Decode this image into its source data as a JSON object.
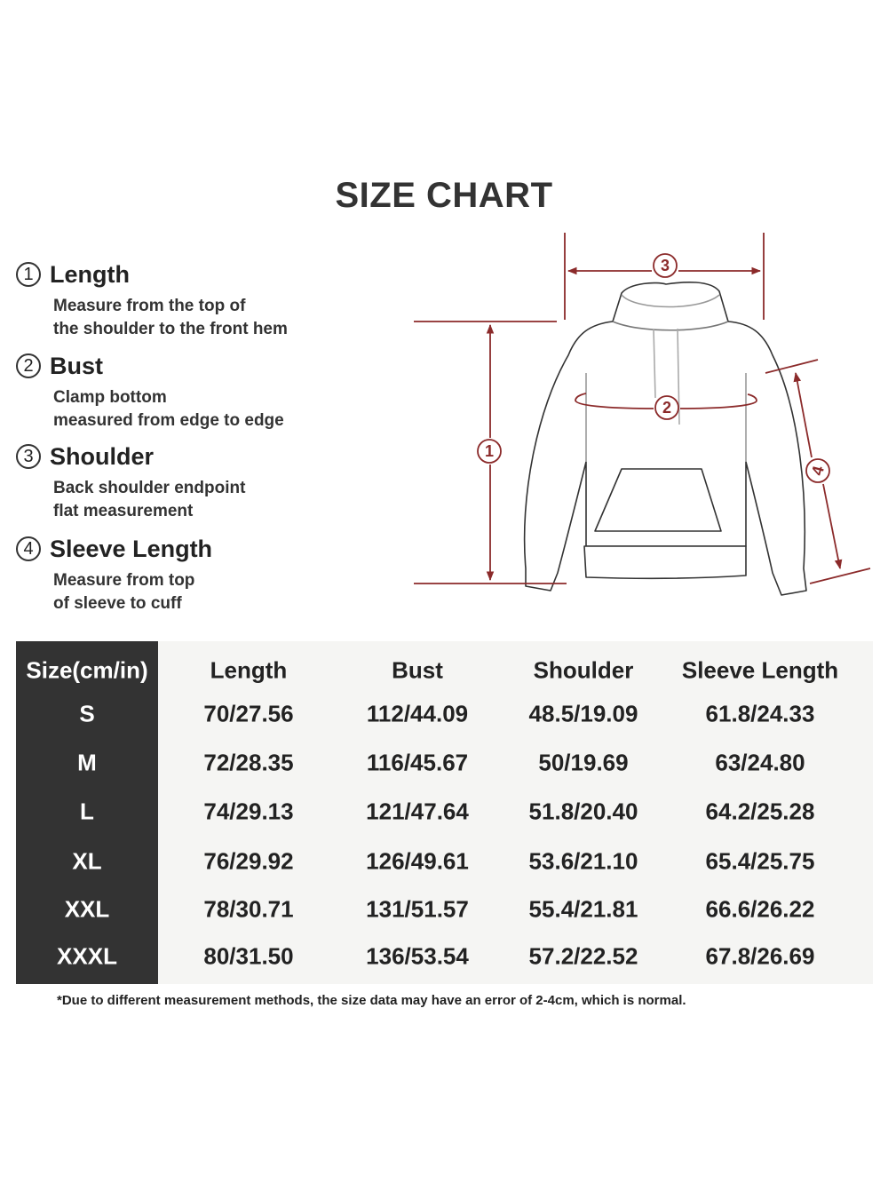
{
  "title": "SIZE CHART",
  "measurements": [
    {
      "number": "1",
      "label": "Length",
      "desc": [
        "Measure from the top of",
        "the shoulder to the front hem"
      ]
    },
    {
      "number": "2",
      "label": "Bust",
      "desc": [
        "Clamp bottom",
        "measured from edge to edge"
      ]
    },
    {
      "number": "3",
      "label": "Shoulder",
      "desc": [
        "Back shoulder endpoint",
        "flat measurement"
      ]
    },
    {
      "number": "4",
      "label": "Sleeve Length",
      "desc": [
        "Measure from top",
        "of sleeve to cuff"
      ]
    }
  ],
  "diagram": {
    "markers": [
      "1",
      "2",
      "3",
      "4"
    ],
    "accent_color": "#8b2a2a"
  },
  "table": {
    "headers": [
      "Size(cm/in)",
      "Length",
      "Bust",
      "Shoulder",
      "Sleeve Length"
    ],
    "rows": [
      [
        "S",
        "70/27.56",
        "112/44.09",
        "48.5/19.09",
        "61.8/24.33"
      ],
      [
        "M",
        "72/28.35",
        "116/45.67",
        "50/19.69",
        "63/24.80"
      ],
      [
        "L",
        "74/29.13",
        "121/47.64",
        "51.8/20.40",
        "64.2/25.28"
      ],
      [
        "XL",
        "76/29.92",
        "126/49.61",
        "53.6/21.10",
        "65.4/25.75"
      ],
      [
        "XXL",
        "78/30.71",
        "131/51.57",
        "55.4/21.81",
        "66.6/26.22"
      ],
      [
        "XXXL",
        "80/31.50",
        "136/53.54",
        "57.2/22.52",
        "67.8/26.69"
      ]
    ]
  },
  "note": "*Due to different measurement methods, the size data may have an error of 2-4cm, which is normal."
}
